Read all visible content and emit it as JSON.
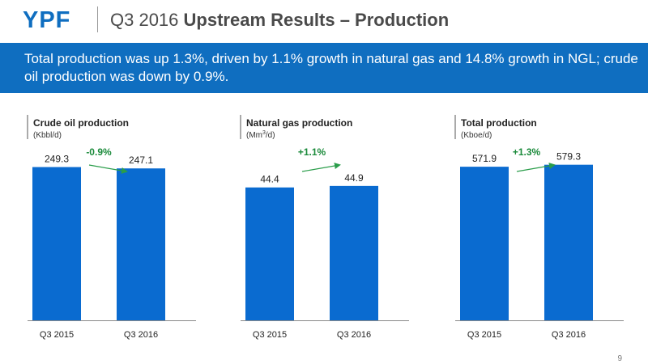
{
  "header": {
    "logo_text": "YPF",
    "title_regular": "Q3 2016",
    "title_bold": "Upstream Results – Production"
  },
  "banner": {
    "text": "Total production was up 1.3%, driven by 1.1% growth in natural gas and 14.8% growth in NGL; crude oil production was down by 0.9%."
  },
  "colors": {
    "brand_blue": "#0f6ec0",
    "bar_blue": "#0a6bd0",
    "growth_green": "#1a8a3a",
    "arrow_green": "#2a9d4a"
  },
  "chart_data": [
    {
      "type": "bar",
      "title": "Crude oil production",
      "unit": "(Kbbl/d)",
      "categories": [
        "Q3 2015",
        "Q3 2016"
      ],
      "values": [
        249.3,
        247.1
      ],
      "value_labels": [
        "249.3",
        "247.1"
      ],
      "change_label": "-0.9%"
    },
    {
      "type": "bar",
      "title": "Natural gas production",
      "unit_base": "(Mm",
      "unit_sup": "3",
      "unit_rest": "/d)",
      "categories": [
        "Q3 2015",
        "Q3 2016"
      ],
      "values": [
        44.4,
        44.9
      ],
      "value_labels": [
        "44.4",
        "44.9"
      ],
      "change_label": "+1.1%"
    },
    {
      "type": "bar",
      "title": "Total production",
      "unit": "(Kboe/d)",
      "categories": [
        "Q3 2015",
        "Q3 2016"
      ],
      "values": [
        571.9,
        579.3
      ],
      "value_labels": [
        "571.9",
        "579.3"
      ],
      "change_label": "+1.3%"
    }
  ],
  "page_number": "9"
}
